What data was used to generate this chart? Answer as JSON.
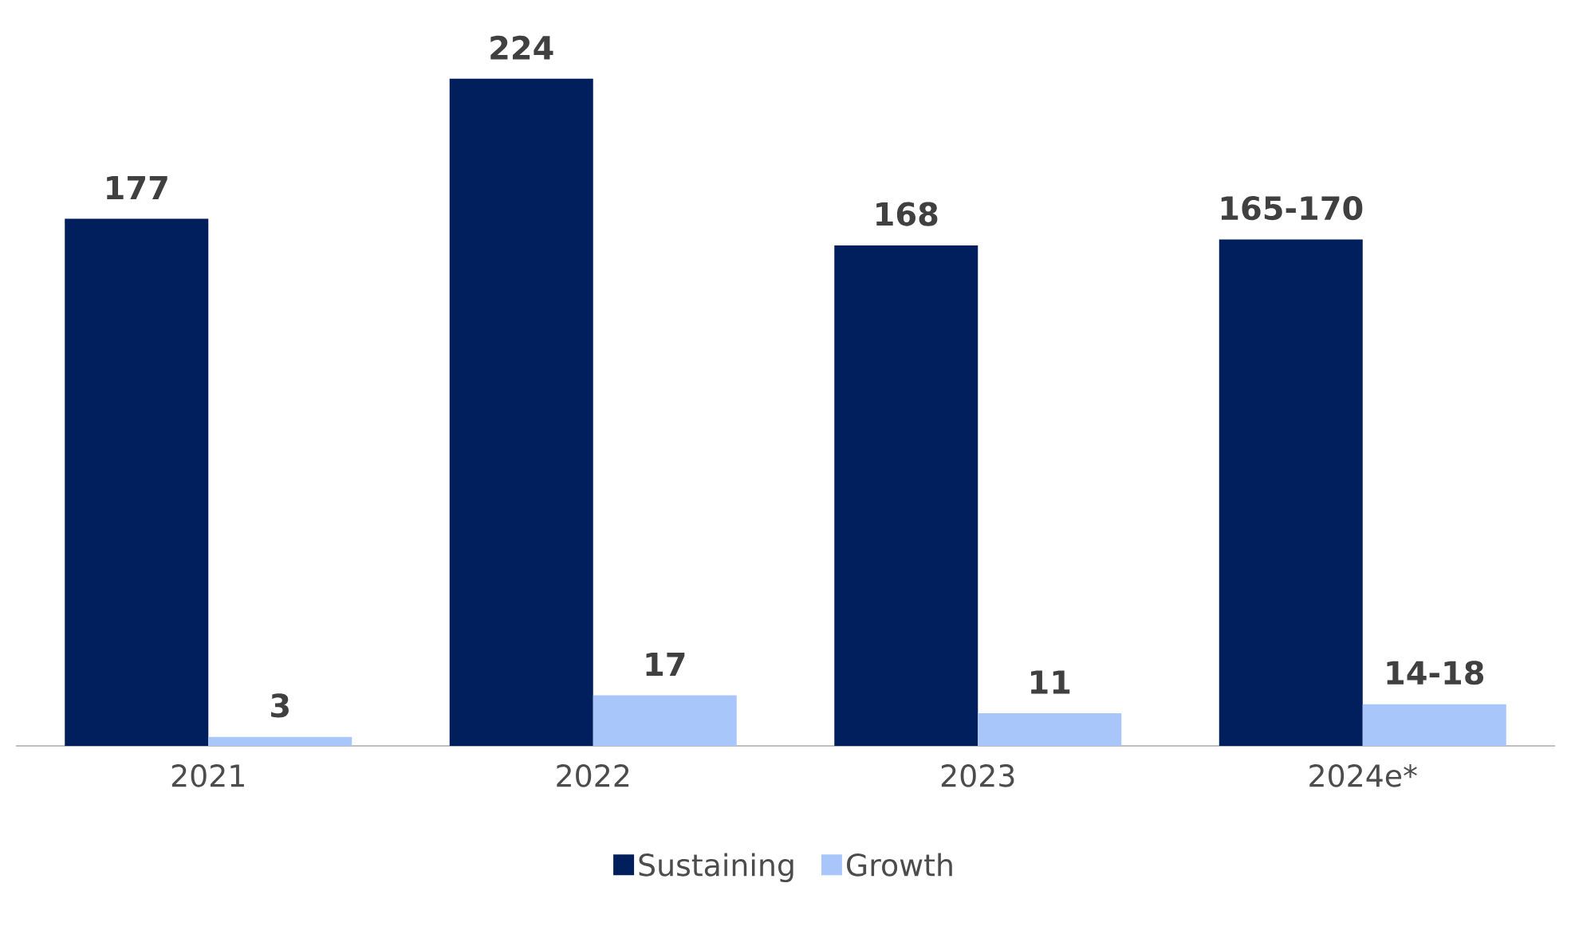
{
  "chart_data": {
    "type": "bar",
    "categories": [
      "2021",
      "2022",
      "2023",
      "2024e*"
    ],
    "series": [
      {
        "name": "Sustaining",
        "color": "#001f5c",
        "values": [
          177,
          224,
          168,
          170
        ],
        "value_labels": [
          "177",
          "224",
          "168",
          "165-170"
        ]
      },
      {
        "name": "Growth",
        "color": "#a9c6fa",
        "values": [
          3,
          17,
          11,
          14
        ],
        "value_labels": [
          "3",
          "17",
          "11",
          "14-18"
        ]
      }
    ],
    "legend": "bottom",
    "grid": false
  }
}
